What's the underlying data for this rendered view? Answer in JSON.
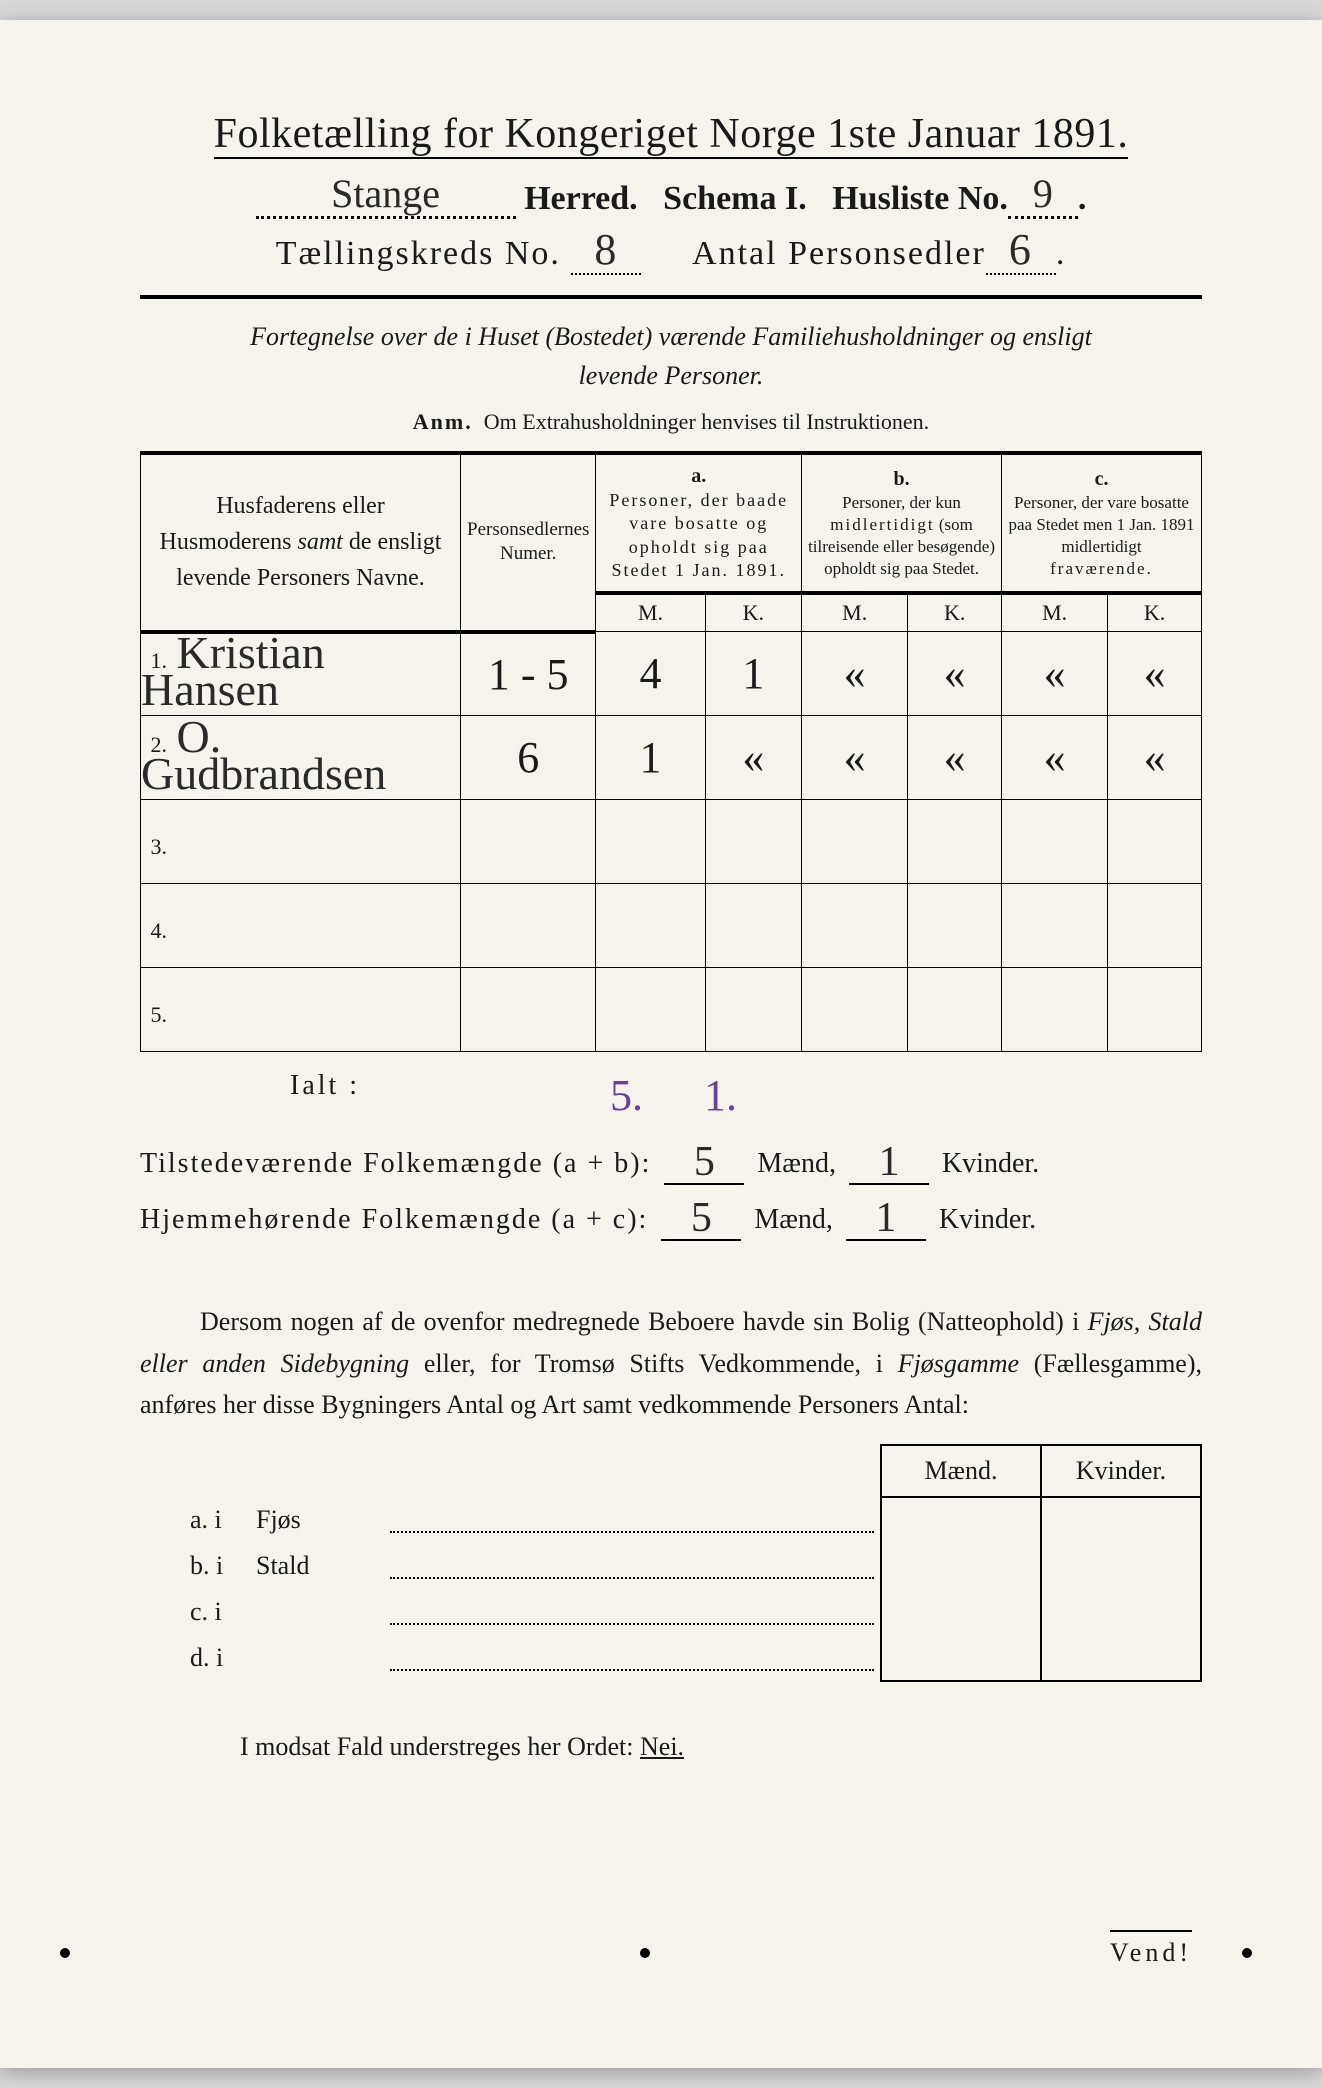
{
  "colors": {
    "paper": "#f5f3ec",
    "ink": "#1a1a1a",
    "pencil_purple": "#6a3fa0"
  },
  "header": {
    "title_prefix": "Folketælling for Kongeriget Norge ",
    "title_date": "1ste Januar 1891.",
    "herred_value": "Stange",
    "herred_label": "Herred.",
    "schema_label": "Schema I.",
    "husliste_label": "Husliste No.",
    "husliste_value": "9",
    "kreds_label": "Tællingskreds No.",
    "kreds_value": "8",
    "antal_label": "Antal Personsedler",
    "antal_value": "6"
  },
  "subheading": {
    "line1": "Fortegnelse over de i Huset (Bostedet) værende Familiehusholdninger og ensligt",
    "line2": "levende Personer.",
    "anm_lead": "Anm.",
    "anm_text": "Om Extrahusholdninger henvises til Instruktionen."
  },
  "table": {
    "col_names": "Husfaderens eller Husmoderens samt de ensligt levende Personers Navne.",
    "col_numer": "Personsedlernes Numer.",
    "group_a_label": "a.",
    "group_a_text": "Personer, der baade vare bosatte og opholdt sig paa Stedet 1 Jan. 1891.",
    "group_b_label": "b.",
    "group_b_text": "Personer, der kun midlertidigt (som tilreisende eller besøgende) opholdt sig paa Stedet.",
    "group_c_label": "c.",
    "group_c_text": "Personer, der vare bosatte paa Stedet men 1 Jan. 1891 midlertidigt fraværende.",
    "mk_m": "M.",
    "mk_k": "K.",
    "rows": [
      {
        "num": "1.",
        "name": "Kristian Hansen",
        "personsedler": "1 - 5",
        "a_m": "4",
        "a_k": "1",
        "b_m": "«",
        "b_k": "«",
        "c_m": "«",
        "c_k": "«"
      },
      {
        "num": "2.",
        "name": "O. Gudbrandsen",
        "personsedler": "6",
        "a_m": "1",
        "a_k": "«",
        "b_m": "«",
        "b_k": "«",
        "c_m": "«",
        "c_k": "«"
      },
      {
        "num": "3.",
        "name": "",
        "personsedler": "",
        "a_m": "",
        "a_k": "",
        "b_m": "",
        "b_k": "",
        "c_m": "",
        "c_k": ""
      },
      {
        "num": "4.",
        "name": "",
        "personsedler": "",
        "a_m": "",
        "a_k": "",
        "b_m": "",
        "b_k": "",
        "c_m": "",
        "c_k": ""
      },
      {
        "num": "5.",
        "name": "",
        "personsedler": "",
        "a_m": "",
        "a_k": "",
        "b_m": "",
        "b_k": "",
        "c_m": "",
        "c_k": ""
      }
    ],
    "ialt_label": "Ialt :",
    "ialt_m": "5.",
    "ialt_k": "1."
  },
  "totals": {
    "present_label": "Tilstedeværende Folkemængde (a + b):",
    "home_label": "Hjemmehørende Folkemængde (a + c):",
    "present_m": "5",
    "present_k": "1",
    "home_m": "5",
    "home_k": "1",
    "maend": "Mænd,",
    "kvinder": "Kvinder."
  },
  "paragraph": {
    "text": "Dersom nogen af de ovenfor medregnede Beboere havde sin Bolig (Natteophold) i Fjøs, Stald eller anden Sidebygning eller, for Tromsø Stifts Vedkommende, i Fjøsgamme (Fællesgamme), anføres her disse Bygningers Antal og Art samt vedkommende Personers Antal:"
  },
  "lower_table": {
    "head_maend": "Mænd.",
    "head_kvinder": "Kvinder.",
    "rows": [
      {
        "label": "a.  i",
        "type": "Fjøs"
      },
      {
        "label": "b.  i",
        "type": "Stald"
      },
      {
        "label": "c.  i",
        "type": ""
      },
      {
        "label": "d.  i",
        "type": ""
      }
    ]
  },
  "modsat": {
    "text_prefix": "I modsat Fald understreges her Ordet: ",
    "nei": "Nei."
  },
  "vend": "Vend!"
}
